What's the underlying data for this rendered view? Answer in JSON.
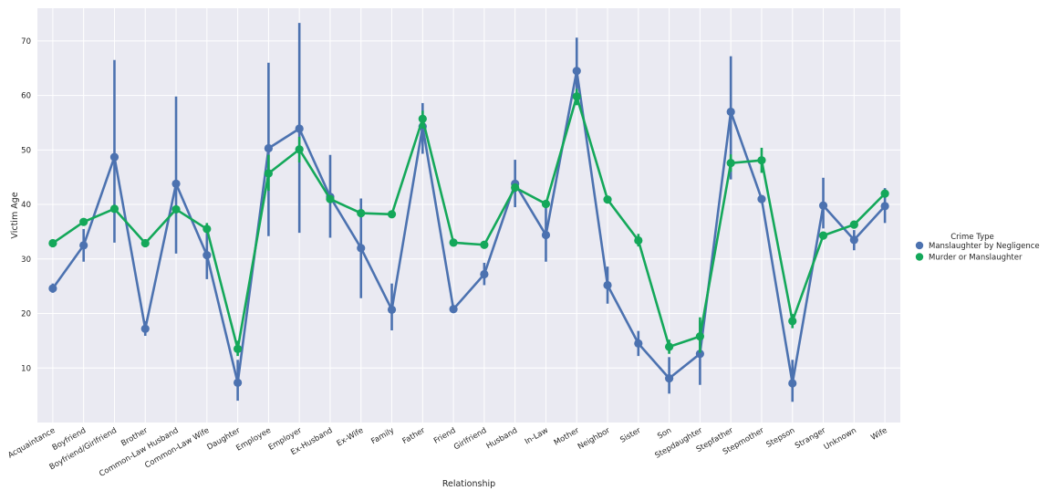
{
  "chart_data": {
    "type": "line",
    "title": "",
    "xlabel": "Relationship",
    "ylabel": "Victim Age",
    "ylim": [
      0,
      76
    ],
    "yticks": [
      10,
      20,
      30,
      40,
      50,
      60,
      70
    ],
    "grid": true,
    "categories": [
      "Acquaintance",
      "Boyfriend",
      "Boyfriend/Girlfriend",
      "Brother",
      "Common-Law Husband",
      "Common-Law Wife",
      "Daughter",
      "Employee",
      "Employer",
      "Ex-Husband",
      "Ex-Wife",
      "Family",
      "Father",
      "Friend",
      "Girlfriend",
      "Husband",
      "In-Law",
      "Mother",
      "Neighbor",
      "Sister",
      "Son",
      "Stepdaughter",
      "Stepfather",
      "Stepmother",
      "Stepson",
      "Stranger",
      "Unknown",
      "Wife"
    ],
    "legend": {
      "title": "Crime Type",
      "placement": "right"
    },
    "series": [
      {
        "name": "Manslaughter by Negligence",
        "color": "#4c72b0",
        "values": [
          24.6,
          32.5,
          48.7,
          17.2,
          43.8,
          30.7,
          7.3,
          50.3,
          53.9,
          41.4,
          32.0,
          20.7,
          54.3,
          20.8,
          27.2,
          43.8,
          34.4,
          64.5,
          25.2,
          14.5,
          8.1,
          12.6,
          57.0,
          41.0,
          7.2,
          39.8,
          33.5,
          39.7
        ],
        "err_low": [
          23.8,
          29.5,
          33.0,
          15.9,
          31.0,
          26.3,
          4.0,
          34.2,
          34.8,
          33.9,
          22.8,
          16.9,
          49.3,
          20.8,
          25.2,
          39.5,
          29.5,
          58.4,
          21.8,
          12.2,
          5.3,
          6.9,
          44.6,
          41.0,
          3.8,
          35.6,
          31.6,
          36.6
        ],
        "err_high": [
          25.5,
          35.5,
          66.5,
          18.6,
          59.8,
          34.9,
          11.5,
          66.0,
          73.3,
          49.1,
          41.1,
          25.5,
          58.6,
          20.8,
          29.3,
          48.2,
          39.6,
          70.6,
          28.6,
          16.8,
          12.0,
          18.7,
          67.2,
          41.0,
          11.5,
          44.9,
          35.3,
          43.0
        ]
      },
      {
        "name": "Murder or Manslaughter",
        "color": "#14a85a",
        "values": [
          32.9,
          36.8,
          39.2,
          32.9,
          39.1,
          35.5,
          13.5,
          45.7,
          50.1,
          41.0,
          38.4,
          38.2,
          55.7,
          33.0,
          32.6,
          43.1,
          40.1,
          59.8,
          40.9,
          33.4,
          13.9,
          15.8,
          47.6,
          48.1,
          18.6,
          34.3,
          36.3,
          42.0
        ],
        "err_low": [
          32.4,
          36.3,
          38.8,
          32.5,
          38.6,
          34.9,
          12.2,
          42.5,
          47.7,
          40.4,
          37.9,
          37.8,
          53.9,
          32.7,
          32.3,
          42.4,
          39.5,
          58.2,
          40.4,
          32.3,
          12.6,
          12.8,
          46.0,
          45.8,
          17.3,
          33.9,
          35.9,
          41.6
        ],
        "err_high": [
          33.5,
          37.3,
          39.6,
          33.3,
          39.6,
          36.6,
          15.0,
          49.1,
          52.4,
          41.6,
          38.9,
          38.7,
          57.2,
          33.3,
          32.9,
          43.7,
          40.7,
          61.2,
          41.4,
          34.6,
          15.2,
          19.3,
          49.2,
          50.4,
          19.9,
          34.7,
          36.8,
          42.5
        ]
      }
    ]
  }
}
